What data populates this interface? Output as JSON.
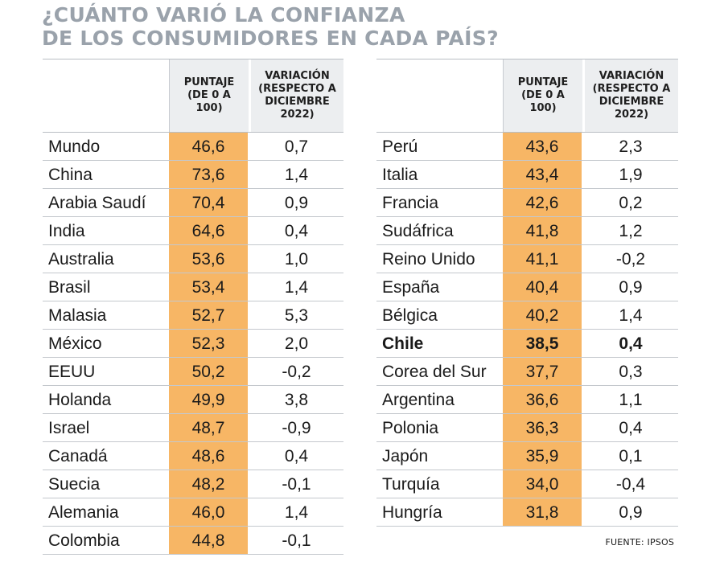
{
  "title": {
    "line1": "¿CUÁNTO VARIÓ LA CONFIANZA",
    "line2": "DE LOS CONSUMIDORES EN CADA PAÍS?"
  },
  "headers": {
    "country": "",
    "score": "PUNTAJE\n(DE 0 A\n100)",
    "variation": "VARIACIÓN\n(RESPECTO A\nDICIEMBRE\n2022)"
  },
  "source": "FUENTE: IPSOS",
  "colors": {
    "score_fill": "#f7b665",
    "header_fill": "#eceef0",
    "title": "#9aa2ab"
  },
  "chart_data": {
    "type": "table",
    "columns": [
      "PUNTAJE (DE 0 A 100)",
      "VARIACIÓN (RESPECTO A DICIEMBRE 2022)"
    ],
    "left": [
      {
        "country": "Mundo",
        "score": "46,6",
        "variation": "0,7"
      },
      {
        "country": "China",
        "score": "73,6",
        "variation": "1,4"
      },
      {
        "country": "Arabia Saudí",
        "score": "70,4",
        "variation": "0,9"
      },
      {
        "country": "India",
        "score": "64,6",
        "variation": "0,4"
      },
      {
        "country": "Australia",
        "score": "53,6",
        "variation": "1,0"
      },
      {
        "country": "Brasil",
        "score": "53,4",
        "variation": "1,4"
      },
      {
        "country": "Malasia",
        "score": "52,7",
        "variation": "5,3"
      },
      {
        "country": "México",
        "score": "52,3",
        "variation": "2,0"
      },
      {
        "country": "EEUU",
        "score": "50,2",
        "variation": "-0,2"
      },
      {
        "country": "Holanda",
        "score": "49,9",
        "variation": "3,8"
      },
      {
        "country": "Israel",
        "score": "48,7",
        "variation": "-0,9"
      },
      {
        "country": "Canadá",
        "score": "48,6",
        "variation": "0,4"
      },
      {
        "country": "Suecia",
        "score": "48,2",
        "variation": "-0,1"
      },
      {
        "country": "Alemania",
        "score": "46,0",
        "variation": "1,4"
      },
      {
        "country": "Colombia",
        "score": "44,8",
        "variation": "-0,1"
      }
    ],
    "right": [
      {
        "country": "Perú",
        "score": "43,6",
        "variation": "2,3"
      },
      {
        "country": "Italia",
        "score": "43,4",
        "variation": "1,9"
      },
      {
        "country": "Francia",
        "score": "42,6",
        "variation": "0,2"
      },
      {
        "country": "Sudáfrica",
        "score": "41,8",
        "variation": "1,2"
      },
      {
        "country": "Reino Unido",
        "score": "41,1",
        "variation": "-0,2"
      },
      {
        "country": "España",
        "score": "40,4",
        "variation": "0,9"
      },
      {
        "country": "Bélgica",
        "score": "40,2",
        "variation": "1,4"
      },
      {
        "country": "Chile",
        "score": "38,5",
        "variation": "0,4",
        "highlight": true
      },
      {
        "country": "Corea del Sur",
        "score": "37,7",
        "variation": "0,3"
      },
      {
        "country": "Argentina",
        "score": "36,6",
        "variation": "1,1"
      },
      {
        "country": "Polonia",
        "score": "36,3",
        "variation": "0,4"
      },
      {
        "country": "Japón",
        "score": "35,9",
        "variation": "0,1"
      },
      {
        "country": "Turquía",
        "score": "34,0",
        "variation": "-0,4"
      },
      {
        "country": "Hungría",
        "score": "31,8",
        "variation": "0,9"
      }
    ]
  }
}
